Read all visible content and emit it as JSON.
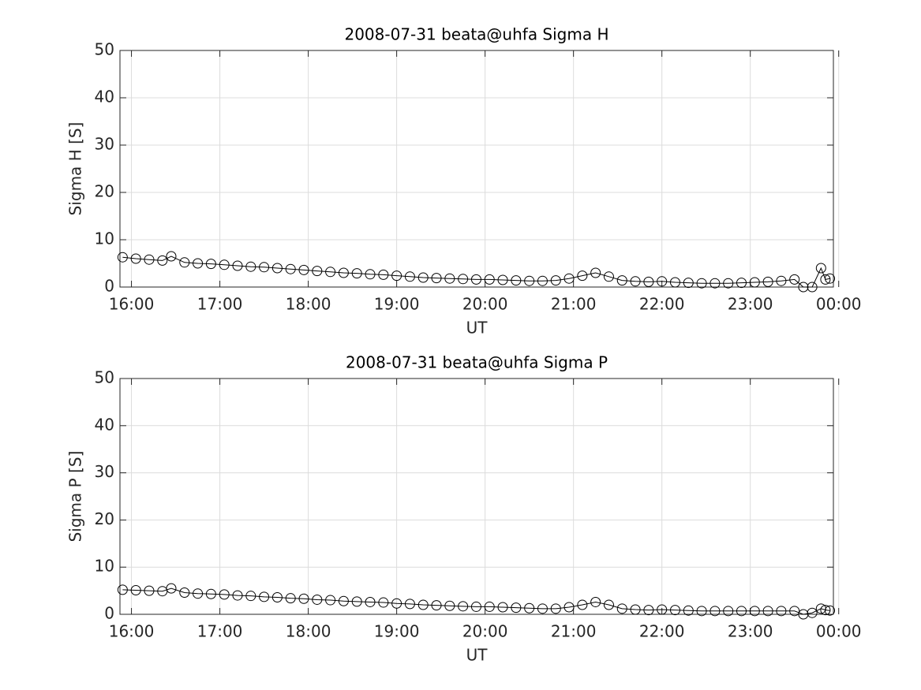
{
  "chart_data": [
    {
      "type": "line",
      "title": "2008-07-31  beata@uhfa Sigma H",
      "xlabel": "UT",
      "ylabel": "Sigma H [S]",
      "color": "#000000",
      "marker": "circle",
      "grid": true,
      "xlim": [
        15.87,
        23.94
      ],
      "ylim": [
        0,
        50
      ],
      "xticks": [
        {
          "value": 16,
          "label": "16:00"
        },
        {
          "value": 17,
          "label": "17:00"
        },
        {
          "value": 18,
          "label": "18:00"
        },
        {
          "value": 19,
          "label": "19:00"
        },
        {
          "value": 20,
          "label": "20:00"
        },
        {
          "value": 21,
          "label": "21:00"
        },
        {
          "value": 22,
          "label": "22:00"
        },
        {
          "value": 23,
          "label": "23:00"
        },
        {
          "value": 24,
          "label": "00:00"
        }
      ],
      "yticks": [
        0,
        10,
        20,
        30,
        40,
        50
      ],
      "x": [
        15.9,
        16.05,
        16.2,
        16.35,
        16.45,
        16.6,
        16.75,
        16.9,
        17.05,
        17.2,
        17.35,
        17.5,
        17.65,
        17.8,
        17.95,
        18.1,
        18.25,
        18.4,
        18.55,
        18.7,
        18.85,
        19.0,
        19.15,
        19.3,
        19.45,
        19.6,
        19.75,
        19.9,
        20.05,
        20.2,
        20.35,
        20.5,
        20.65,
        20.8,
        20.95,
        21.1,
        21.25,
        21.4,
        21.55,
        21.7,
        21.85,
        22.0,
        22.15,
        22.3,
        22.45,
        22.6,
        22.75,
        22.9,
        23.05,
        23.2,
        23.35,
        23.5,
        23.6,
        23.7,
        23.8,
        23.85,
        23.9
      ],
      "values": [
        6.3,
        6.0,
        5.8,
        5.6,
        6.5,
        5.2,
        5.0,
        4.9,
        4.7,
        4.5,
        4.3,
        4.2,
        4.0,
        3.8,
        3.6,
        3.4,
        3.2,
        3.0,
        2.9,
        2.7,
        2.6,
        2.4,
        2.2,
        2.0,
        1.9,
        1.8,
        1.7,
        1.6,
        1.6,
        1.5,
        1.4,
        1.3,
        1.3,
        1.4,
        1.8,
        2.4,
        3.0,
        2.2,
        1.4,
        1.2,
        1.1,
        1.2,
        1.0,
        0.9,
        0.8,
        0.8,
        0.8,
        0.9,
        1.0,
        1.1,
        1.3,
        1.6,
        0,
        0,
        4.0,
        1.6,
        1.8
      ]
    },
    {
      "type": "line",
      "title": "2008-07-31  beata@uhfa Sigma P",
      "xlabel": "UT",
      "ylabel": "Sigma P [S]",
      "color": "#000000",
      "marker": "circle",
      "grid": true,
      "xlim": [
        15.87,
        23.94
      ],
      "ylim": [
        0,
        50
      ],
      "xticks": [
        {
          "value": 16,
          "label": "16:00"
        },
        {
          "value": 17,
          "label": "17:00"
        },
        {
          "value": 18,
          "label": "18:00"
        },
        {
          "value": 19,
          "label": "19:00"
        },
        {
          "value": 20,
          "label": "20:00"
        },
        {
          "value": 21,
          "label": "21:00"
        },
        {
          "value": 22,
          "label": "22:00"
        },
        {
          "value": 23,
          "label": "23:00"
        },
        {
          "value": 24,
          "label": "00:00"
        }
      ],
      "yticks": [
        0,
        10,
        20,
        30,
        40,
        50
      ],
      "x": [
        15.9,
        16.05,
        16.2,
        16.35,
        16.45,
        16.6,
        16.75,
        16.9,
        17.05,
        17.2,
        17.35,
        17.5,
        17.65,
        17.8,
        17.95,
        18.1,
        18.25,
        18.4,
        18.55,
        18.7,
        18.85,
        19.0,
        19.15,
        19.3,
        19.45,
        19.6,
        19.75,
        19.9,
        20.05,
        20.2,
        20.35,
        20.5,
        20.65,
        20.8,
        20.95,
        21.1,
        21.25,
        21.4,
        21.55,
        21.7,
        21.85,
        22.0,
        22.15,
        22.3,
        22.45,
        22.6,
        22.75,
        22.9,
        23.05,
        23.2,
        23.35,
        23.5,
        23.6,
        23.7,
        23.8,
        23.85,
        23.9
      ],
      "values": [
        5.2,
        5.1,
        5.0,
        4.9,
        5.5,
        4.6,
        4.4,
        4.3,
        4.2,
        4.0,
        3.9,
        3.7,
        3.6,
        3.4,
        3.3,
        3.1,
        3.0,
        2.8,
        2.7,
        2.6,
        2.5,
        2.3,
        2.2,
        2.0,
        1.9,
        1.8,
        1.7,
        1.6,
        1.6,
        1.5,
        1.4,
        1.3,
        1.2,
        1.2,
        1.5,
        2.0,
        2.6,
        2.0,
        1.2,
        1.0,
        0.9,
        1.0,
        0.9,
        0.8,
        0.7,
        0.7,
        0.7,
        0.7,
        0.7,
        0.7,
        0.7,
        0.7,
        0,
        0.3,
        1.2,
        0.9,
        0.8
      ]
    }
  ]
}
